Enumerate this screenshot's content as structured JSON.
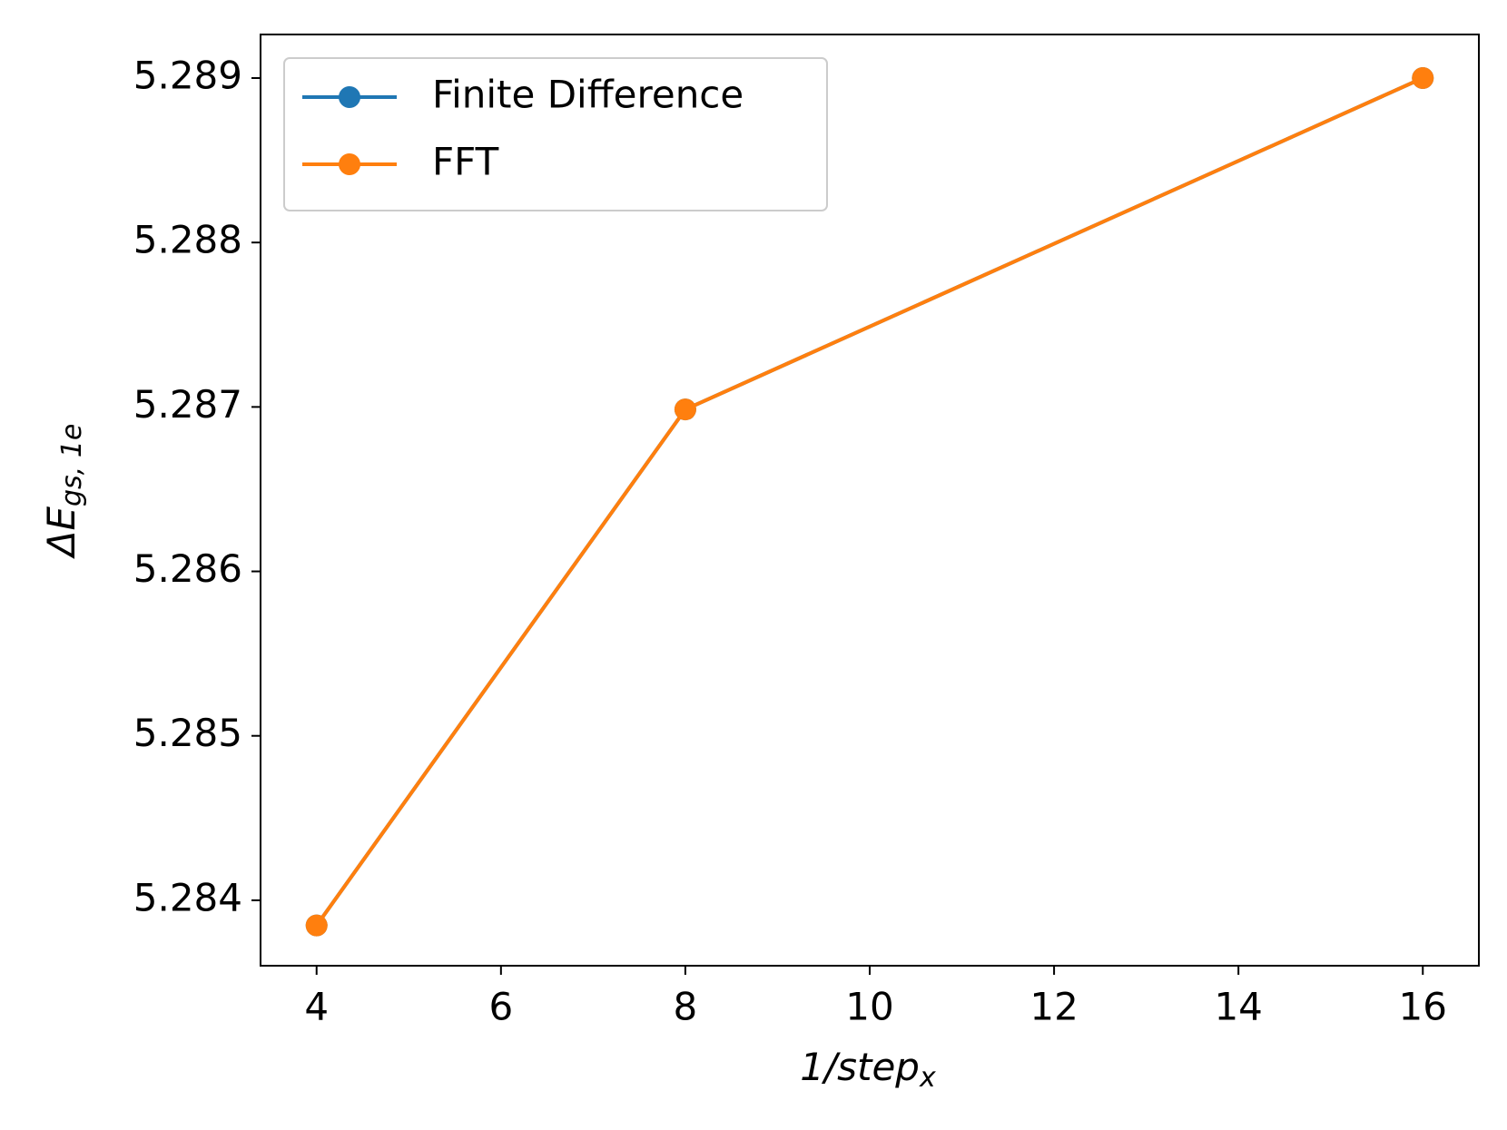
{
  "chart_data": {
    "type": "line",
    "ylabel": "ΔE",
    "ylabel_sub": "gs, 1e",
    "xlabel": "1/step",
    "xlabel_sub": "x",
    "x": [
      4,
      8,
      16
    ],
    "series": [
      {
        "name": "Finite Difference",
        "color": "#1f77b4",
        "values": [
          5.283847,
          5.286985,
          5.289
        ]
      },
      {
        "name": "FFT",
        "color": "#ff7f0e",
        "values": [
          5.283847,
          5.286985,
          5.289
        ]
      }
    ],
    "xlim": [
      3.392,
      16.608
    ],
    "xticks": [
      4,
      6,
      8,
      10,
      12,
      14,
      16
    ],
    "ylim": [
      5.283602,
      5.289265
    ],
    "yticks": [
      5.284,
      5.285,
      5.286,
      5.287,
      5.288,
      5.289
    ],
    "legend": "upper left",
    "grid": false
  }
}
